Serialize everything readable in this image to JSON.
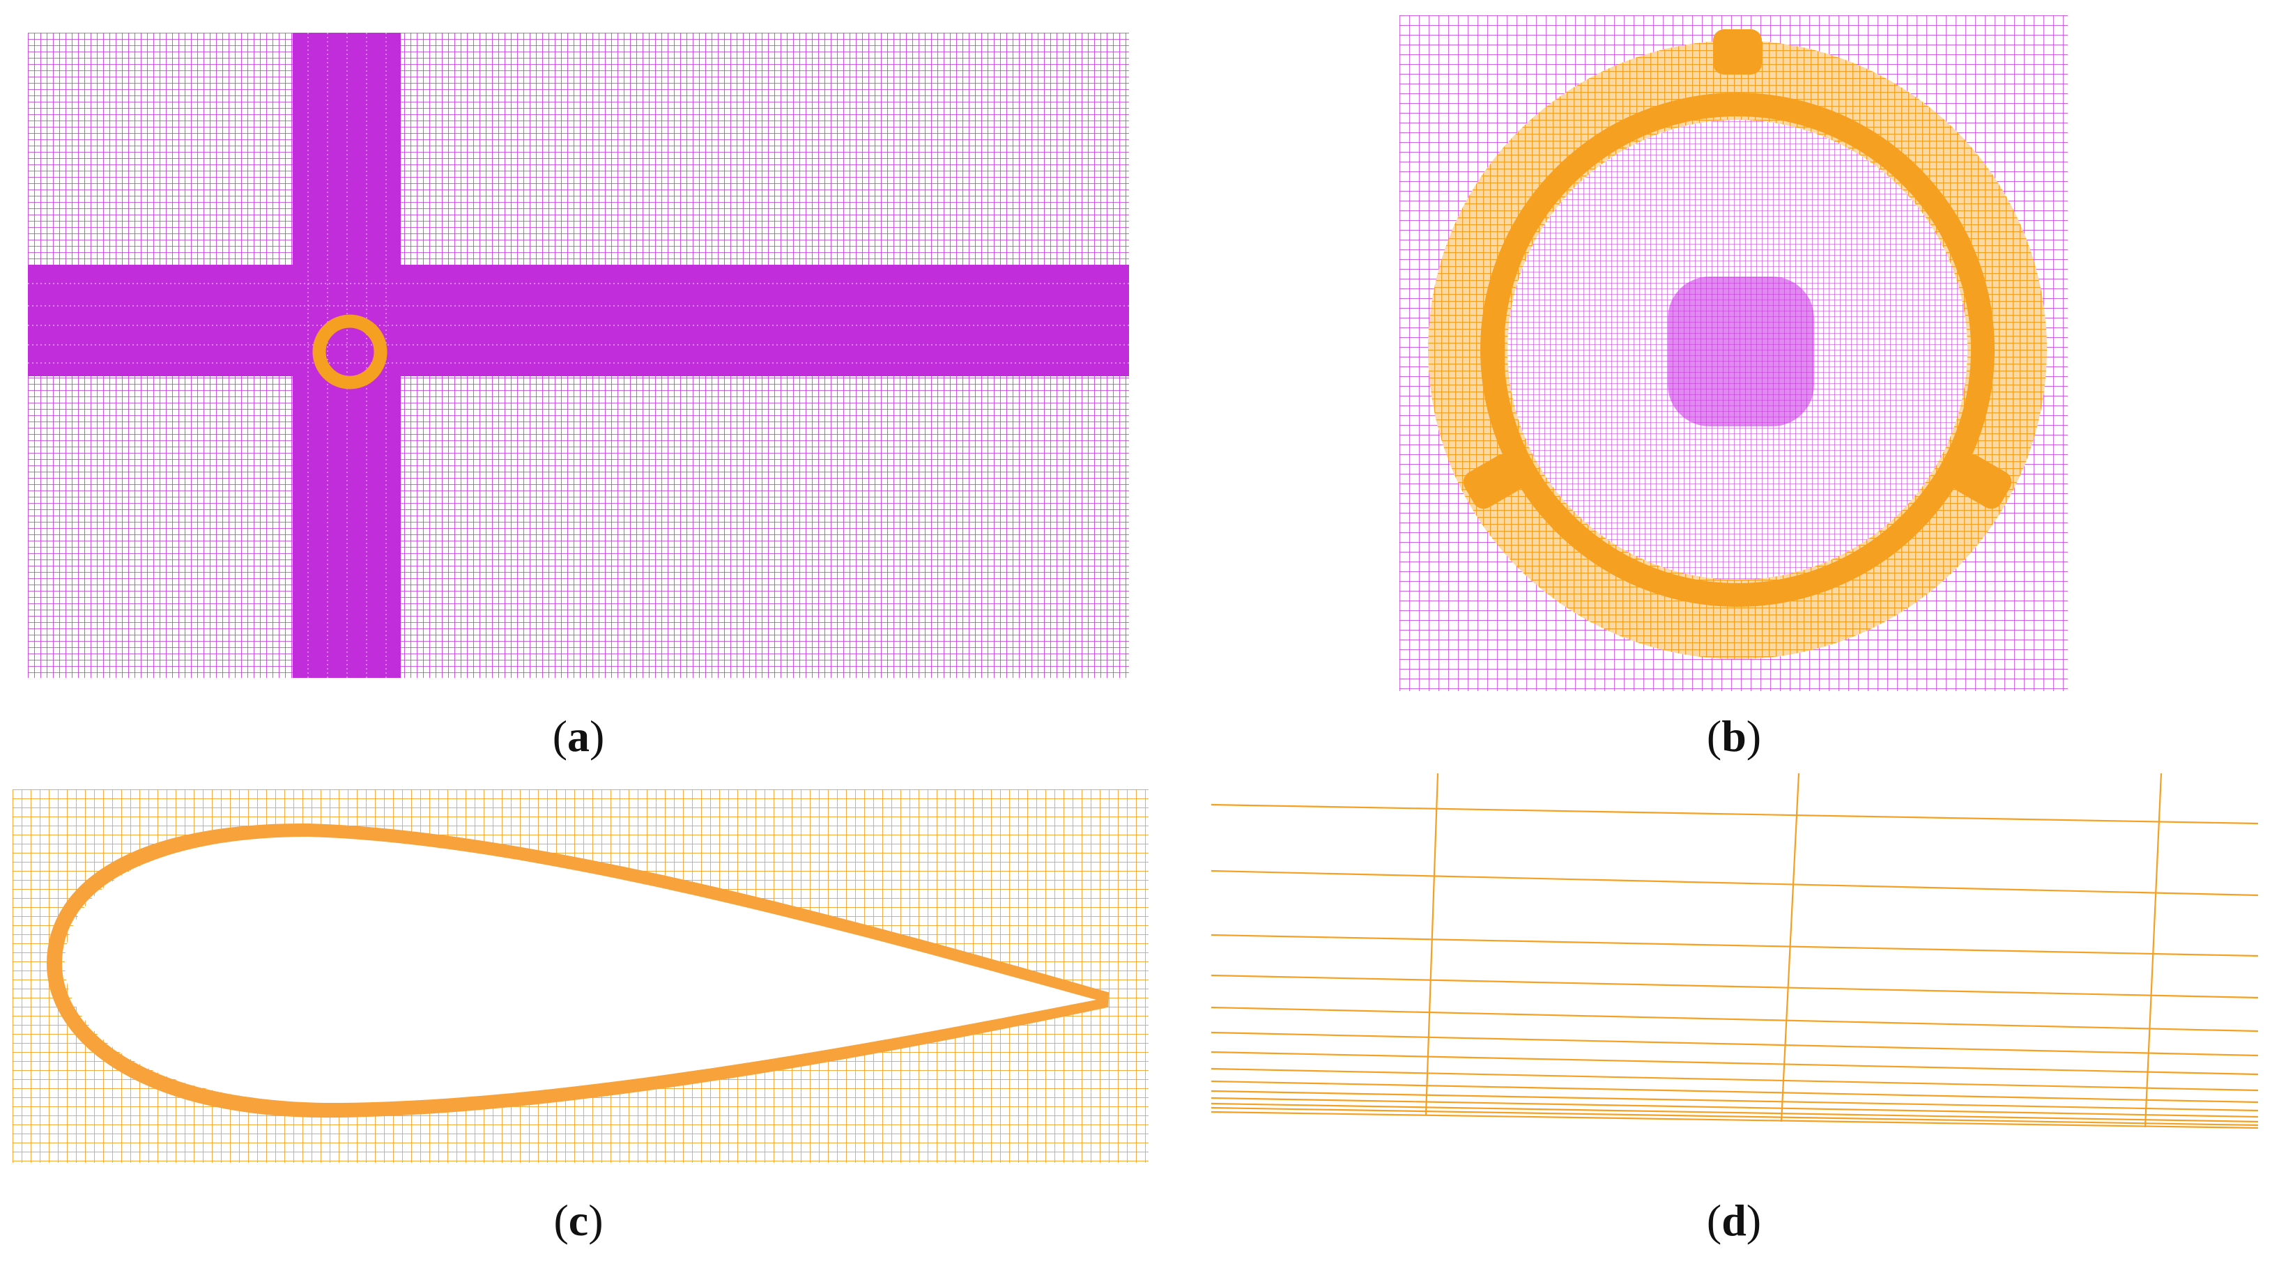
{
  "colors": {
    "background_mesh": "#c12ddb",
    "rotating_mesh": "#f5a020",
    "blade_boundary_layer": "#f7a23a",
    "page": "#ffffff"
  },
  "panels": [
    {
      "id": "a",
      "caption_open": "(",
      "caption_letter": "a",
      "caption_close": ")"
    },
    {
      "id": "b",
      "caption_open": "(",
      "caption_letter": "b",
      "caption_close": ")"
    },
    {
      "id": "c",
      "caption_open": "(",
      "caption_letter": "c",
      "caption_close": ")"
    },
    {
      "id": "d",
      "caption_open": "(",
      "caption_letter": "d",
      "caption_close": ")"
    }
  ]
}
